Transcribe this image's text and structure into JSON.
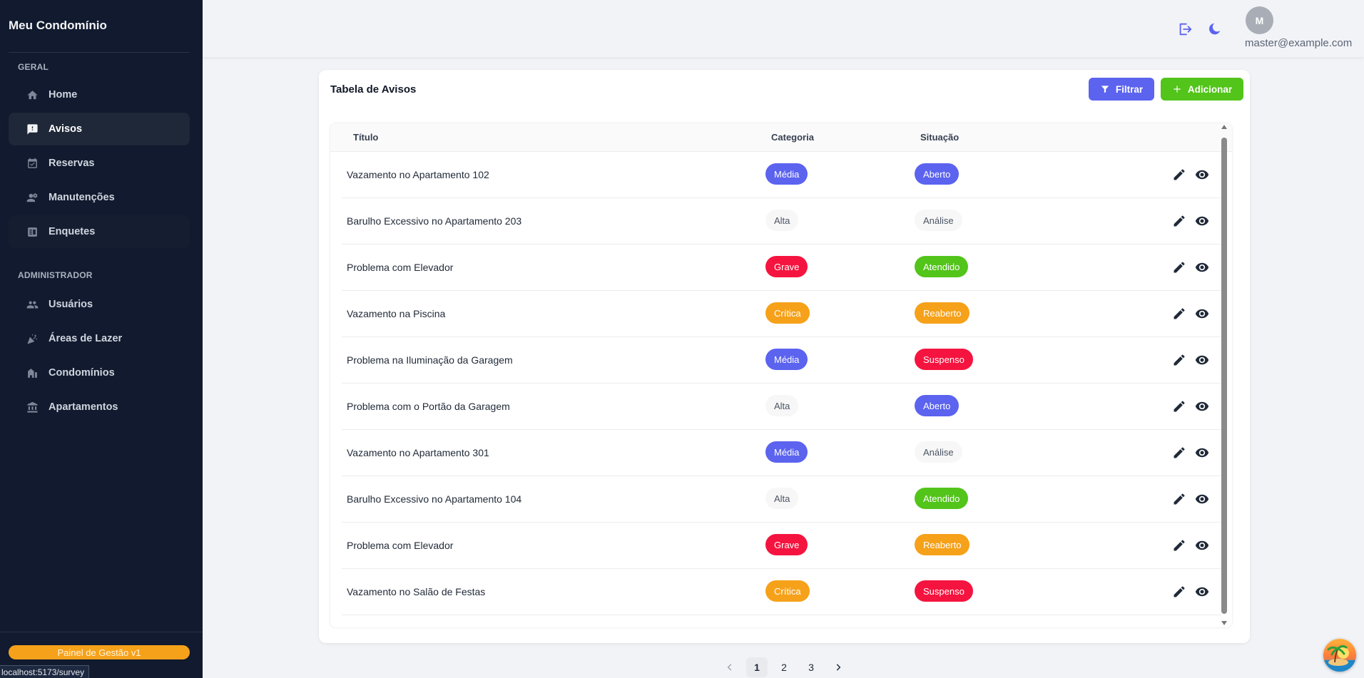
{
  "sidebar": {
    "brand": "Meu Condomínio",
    "sections": [
      {
        "label": "GERAL"
      },
      {
        "label": "ADMINISTRADOR"
      }
    ],
    "items": [
      {
        "label": "Home",
        "icon": "home-icon"
      },
      {
        "label": "Avisos",
        "icon": "alert-icon"
      },
      {
        "label": "Reservas",
        "icon": "calendar-check-icon"
      },
      {
        "label": "Manutenções",
        "icon": "worker-icon"
      },
      {
        "label": "Enquetes",
        "icon": "poll-icon"
      },
      {
        "label": "Usuários",
        "icon": "users-icon"
      },
      {
        "label": "Áreas de Lazer",
        "icon": "party-icon"
      },
      {
        "label": "Condomínios",
        "icon": "buildings-icon"
      },
      {
        "label": "Apartamentos",
        "icon": "bank-icon"
      }
    ],
    "version": "Painel de Gestão v1",
    "status_url": "localhost:5173/survey"
  },
  "header": {
    "avatar_initial": "M",
    "email": "master@example.com",
    "accent": "#5b63ef"
  },
  "card": {
    "title": "Tabela de Avisos",
    "filter_label": "Filtrar",
    "add_label": "Adicionar"
  },
  "table": {
    "columns": [
      "Título",
      "Categoria",
      "Situação"
    ],
    "rows": [
      {
        "title": "Vazamento no Apartamento 102",
        "category": "Média",
        "status": "Aberto"
      },
      {
        "title": "Barulho Excessivo no Apartamento 203",
        "category": "Alta",
        "status": "Análise"
      },
      {
        "title": "Problema com Elevador",
        "category": "Grave",
        "status": "Atendido"
      },
      {
        "title": "Vazamento na Piscina",
        "category": "Crítica",
        "status": "Reaberto"
      },
      {
        "title": "Problema na Iluminação da Garagem",
        "category": "Média",
        "status": "Suspenso"
      },
      {
        "title": "Problema com o Portão da Garagem",
        "category": "Alta",
        "status": "Aberto"
      },
      {
        "title": "Vazamento no Apartamento 301",
        "category": "Média",
        "status": "Análise"
      },
      {
        "title": "Barulho Excessivo no Apartamento 104",
        "category": "Alta",
        "status": "Atendido"
      },
      {
        "title": "Problema com Elevador",
        "category": "Grave",
        "status": "Reaberto"
      },
      {
        "title": "Vazamento no Salão de Festas",
        "category": "Crítica",
        "status": "Suspenso"
      }
    ]
  },
  "badge_colors": {
    "Média": "#5b63ef",
    "Alta": "",
    "Grave": "#f5143f",
    "Crítica": "#f6a11a",
    "Aberto": "#5b63ef",
    "Análise": "",
    "Atendido": "#52c41a",
    "Reaberto": "#f6a11a",
    "Suspenso": "#f5143f"
  },
  "pagination": {
    "pages": [
      "1",
      "2",
      "3"
    ],
    "current": "1"
  }
}
